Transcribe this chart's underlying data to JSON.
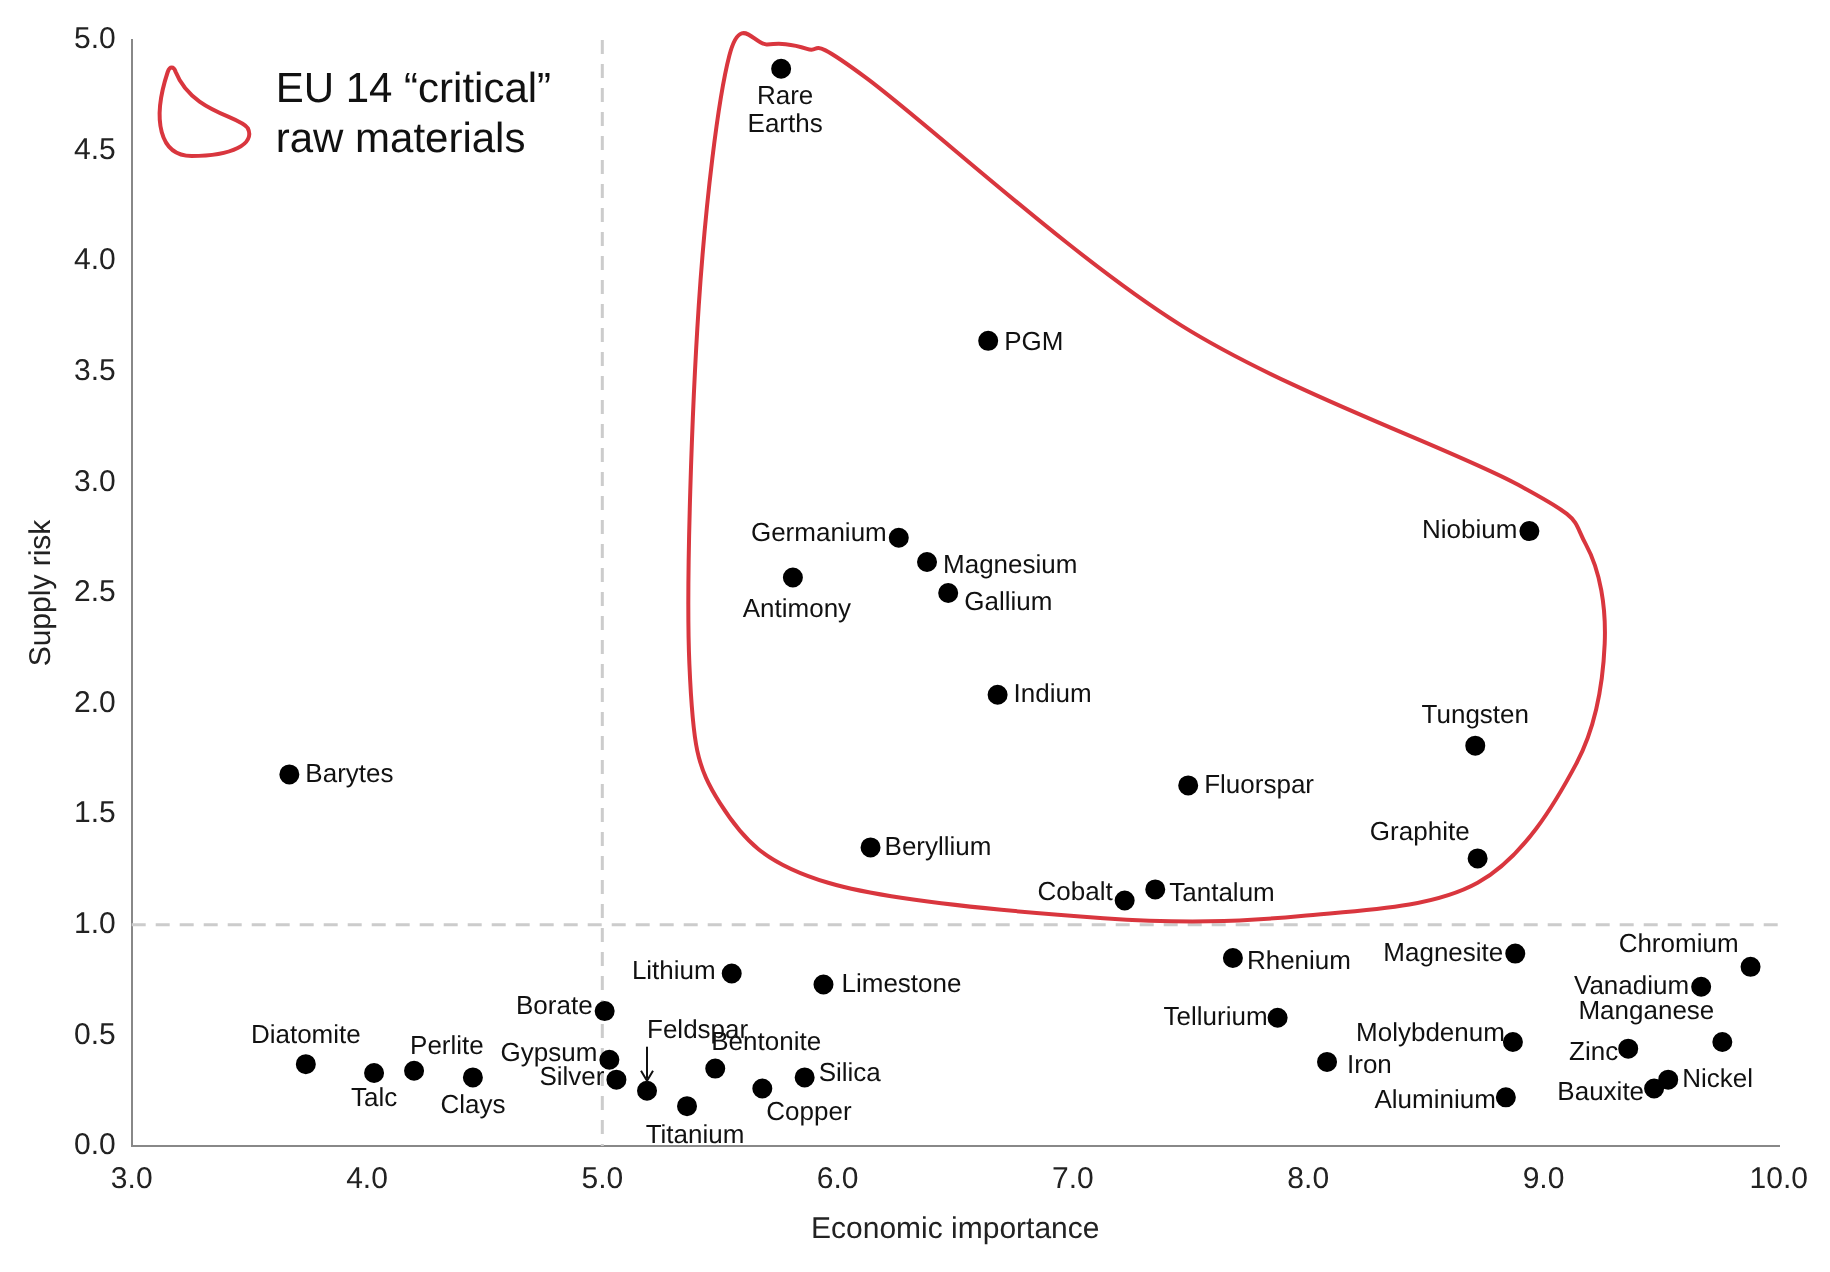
{
  "chart_data": {
    "type": "scatter",
    "xlabel": "Economic importance",
    "ylabel": "Supply risk",
    "color": "#000000",
    "marker": "circle",
    "x": [
      5.76,
      6.64,
      6.26,
      6.38,
      6.47,
      5.81,
      8.94,
      6.68,
      8.71,
      7.49,
      6.14,
      8.72,
      7.22,
      7.35,
      3.67,
      7.68,
      8.88,
      9.88,
      9.67,
      7.87,
      8.87,
      9.76,
      9.36,
      8.08,
      9.53,
      9.47,
      8.84,
      3.74,
      4.03,
      4.2,
      4.45,
      5.01,
      5.03,
      5.06,
      5.19,
      5.36,
      5.55,
      5.94,
      5.48,
      5.68,
      5.86
    ],
    "values": [
      4.87,
      3.64,
      2.75,
      2.64,
      2.5,
      2.57,
      2.78,
      2.04,
      1.81,
      1.63,
      1.35,
      1.3,
      1.11,
      1.16,
      1.68,
      0.85,
      0.87,
      0.81,
      0.72,
      0.58,
      0.47,
      0.47,
      0.44,
      0.38,
      0.3,
      0.26,
      0.22,
      0.37,
      0.33,
      0.34,
      0.31,
      0.61,
      0.39,
      0.3,
      0.25,
      0.18,
      0.78,
      0.73,
      0.35,
      0.26,
      0.31
    ],
    "xlim": [
      3,
      10
    ],
    "ylim": [
      0,
      5
    ],
    "xticks": [
      {
        "value": 3,
        "label": "3.0"
      },
      {
        "value": 4,
        "label": "4.0"
      },
      {
        "value": 5,
        "label": "5.0"
      },
      {
        "value": 6,
        "label": "6.0"
      },
      {
        "value": 7,
        "label": "7.0"
      },
      {
        "value": 8,
        "label": "8.0"
      },
      {
        "value": 9,
        "label": "9.0"
      },
      {
        "value": 10,
        "label": "10.0"
      }
    ],
    "yticks": [
      {
        "value": 0,
        "label": "0.0"
      },
      {
        "value": 0.5,
        "label": "0.5"
      },
      {
        "value": 1,
        "label": "1.0"
      },
      {
        "value": 1.5,
        "label": "1.5"
      },
      {
        "value": 2,
        "label": "2.0"
      },
      {
        "value": 2.5,
        "label": "2.5"
      },
      {
        "value": 3,
        "label": "3.0"
      },
      {
        "value": 3.5,
        "label": "3.5"
      },
      {
        "value": 4,
        "label": "4.0"
      },
      {
        "value": 4.5,
        "label": "4.5"
      },
      {
        "value": 5,
        "label": "5.0"
      }
    ],
    "ref_lines": [
      {
        "axis": "x",
        "value": 5,
        "color": "#cccccc",
        "line_style": "dashed"
      },
      {
        "axis": "y",
        "value": 1,
        "color": "#cccccc",
        "line_style": "dashed"
      }
    ],
    "annotations": [
      "EU 14 “critical” raw materials",
      {
        "text": "Rare Earths",
        "x": 5.76,
        "y": 4.87
      },
      {
        "text": "PGM",
        "x": 6.64,
        "y": 3.64
      },
      {
        "text": "Germanium",
        "x": 6.26,
        "y": 2.75
      },
      {
        "text": "Magnesium",
        "x": 6.38,
        "y": 2.64
      },
      {
        "text": "Gallium",
        "x": 6.47,
        "y": 2.5
      },
      {
        "text": "Antimony",
        "x": 5.81,
        "y": 2.57
      },
      {
        "text": "Niobium",
        "x": 8.94,
        "y": 2.78
      },
      {
        "text": "Indium",
        "x": 6.68,
        "y": 2.04
      },
      {
        "text": "Tungsten",
        "x": 8.71,
        "y": 1.81
      },
      {
        "text": "Fluorspar",
        "x": 7.49,
        "y": 1.63
      },
      {
        "text": "Beryllium",
        "x": 6.14,
        "y": 1.35
      },
      {
        "text": "Graphite",
        "x": 8.72,
        "y": 1.3
      },
      {
        "text": "Cobalt",
        "x": 7.22,
        "y": 1.11
      },
      {
        "text": "Tantalum",
        "x": 7.35,
        "y": 1.16
      },
      {
        "text": "Barytes",
        "x": 3.67,
        "y": 1.68
      },
      {
        "text": "Rhenium",
        "x": 7.68,
        "y": 0.85
      },
      {
        "text": "Magnesite",
        "x": 8.88,
        "y": 0.87
      },
      {
        "text": "Chromium",
        "x": 9.88,
        "y": 0.81
      },
      {
        "text": "Vanadium",
        "x": 9.67,
        "y": 0.72
      },
      {
        "text": "Tellurium",
        "x": 7.87,
        "y": 0.58
      },
      {
        "text": "Molybdenum",
        "x": 8.87,
        "y": 0.47
      },
      {
        "text": "Manganese",
        "x": 9.76,
        "y": 0.47
      },
      {
        "text": "Zinc",
        "x": 9.36,
        "y": 0.44
      },
      {
        "text": "Iron",
        "x": 8.08,
        "y": 0.38
      },
      {
        "text": "Nickel",
        "x": 9.53,
        "y": 0.3
      },
      {
        "text": "Bauxite",
        "x": 9.47,
        "y": 0.26
      },
      {
        "text": "Aluminium",
        "x": 8.84,
        "y": 0.22
      },
      {
        "text": "Diatomite",
        "x": 3.74,
        "y": 0.37
      },
      {
        "text": "Talc",
        "x": 4.03,
        "y": 0.33
      },
      {
        "text": "Perlite",
        "x": 4.2,
        "y": 0.34
      },
      {
        "text": "Clays",
        "x": 4.45,
        "y": 0.31
      },
      {
        "text": "Borate",
        "x": 5.01,
        "y": 0.61
      },
      {
        "text": "Gypsum",
        "x": 5.03,
        "y": 0.39
      },
      {
        "text": "Silver",
        "x": 5.06,
        "y": 0.3
      },
      {
        "text": "Feldspar",
        "x": 5.19,
        "y": 0.25
      },
      {
        "text": "Titanium",
        "x": 5.36,
        "y": 0.18
      },
      {
        "text": "Lithium",
        "x": 5.55,
        "y": 0.78
      },
      {
        "text": "Limestone",
        "x": 5.94,
        "y": 0.73
      },
      {
        "text": "Bentonite",
        "x": 5.48,
        "y": 0.35
      },
      {
        "text": "Copper",
        "x": 5.68,
        "y": 0.26
      },
      {
        "text": "Silica",
        "x": 5.86,
        "y": 0.31
      }
    ]
  }
}
